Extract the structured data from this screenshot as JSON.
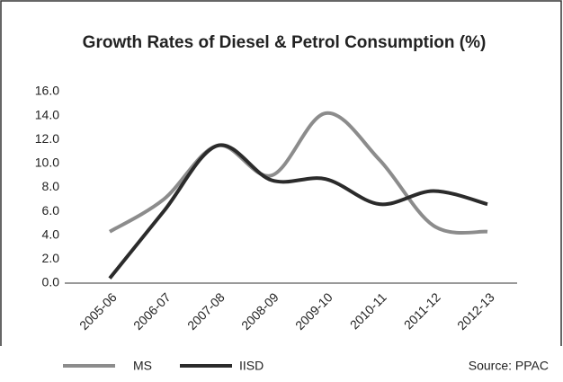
{
  "chart_data": {
    "type": "line",
    "title": "Growth Rates of Diesel & Petrol Consumption (%)",
    "categories": [
      "2005-06",
      "2006-07",
      "2007-08",
      "2008-09",
      "2009-10",
      "2010-11",
      "2011-12",
      "2012-13"
    ],
    "series": [
      {
        "name": "MS",
        "color": "#8c8c8c",
        "values": [
          4.3,
          7.0,
          11.5,
          9.0,
          14.2,
          10.3,
          4.8,
          4.3
        ]
      },
      {
        "name": "IISD",
        "color": "#2b2b2b",
        "values": [
          0.4,
          6.0,
          11.5,
          8.6,
          8.7,
          6.6,
          7.7,
          6.6
        ]
      }
    ],
    "ylim": [
      0,
      16
    ],
    "yticks": [
      {
        "value": 0,
        "label": "0.0"
      },
      {
        "value": 2,
        "label": "2.0"
      },
      {
        "value": 4,
        "label": "4.0"
      },
      {
        "value": 6,
        "label": "6.0"
      },
      {
        "value": 8,
        "label": "8.0"
      },
      {
        "value": 10,
        "label": "10.0"
      },
      {
        "value": 12,
        "label": "12.0"
      },
      {
        "value": 14,
        "label": "14.0"
      },
      {
        "value": 16,
        "label": "16.0"
      }
    ],
    "annotation": "Source: PPAC",
    "legend": "bottom"
  }
}
